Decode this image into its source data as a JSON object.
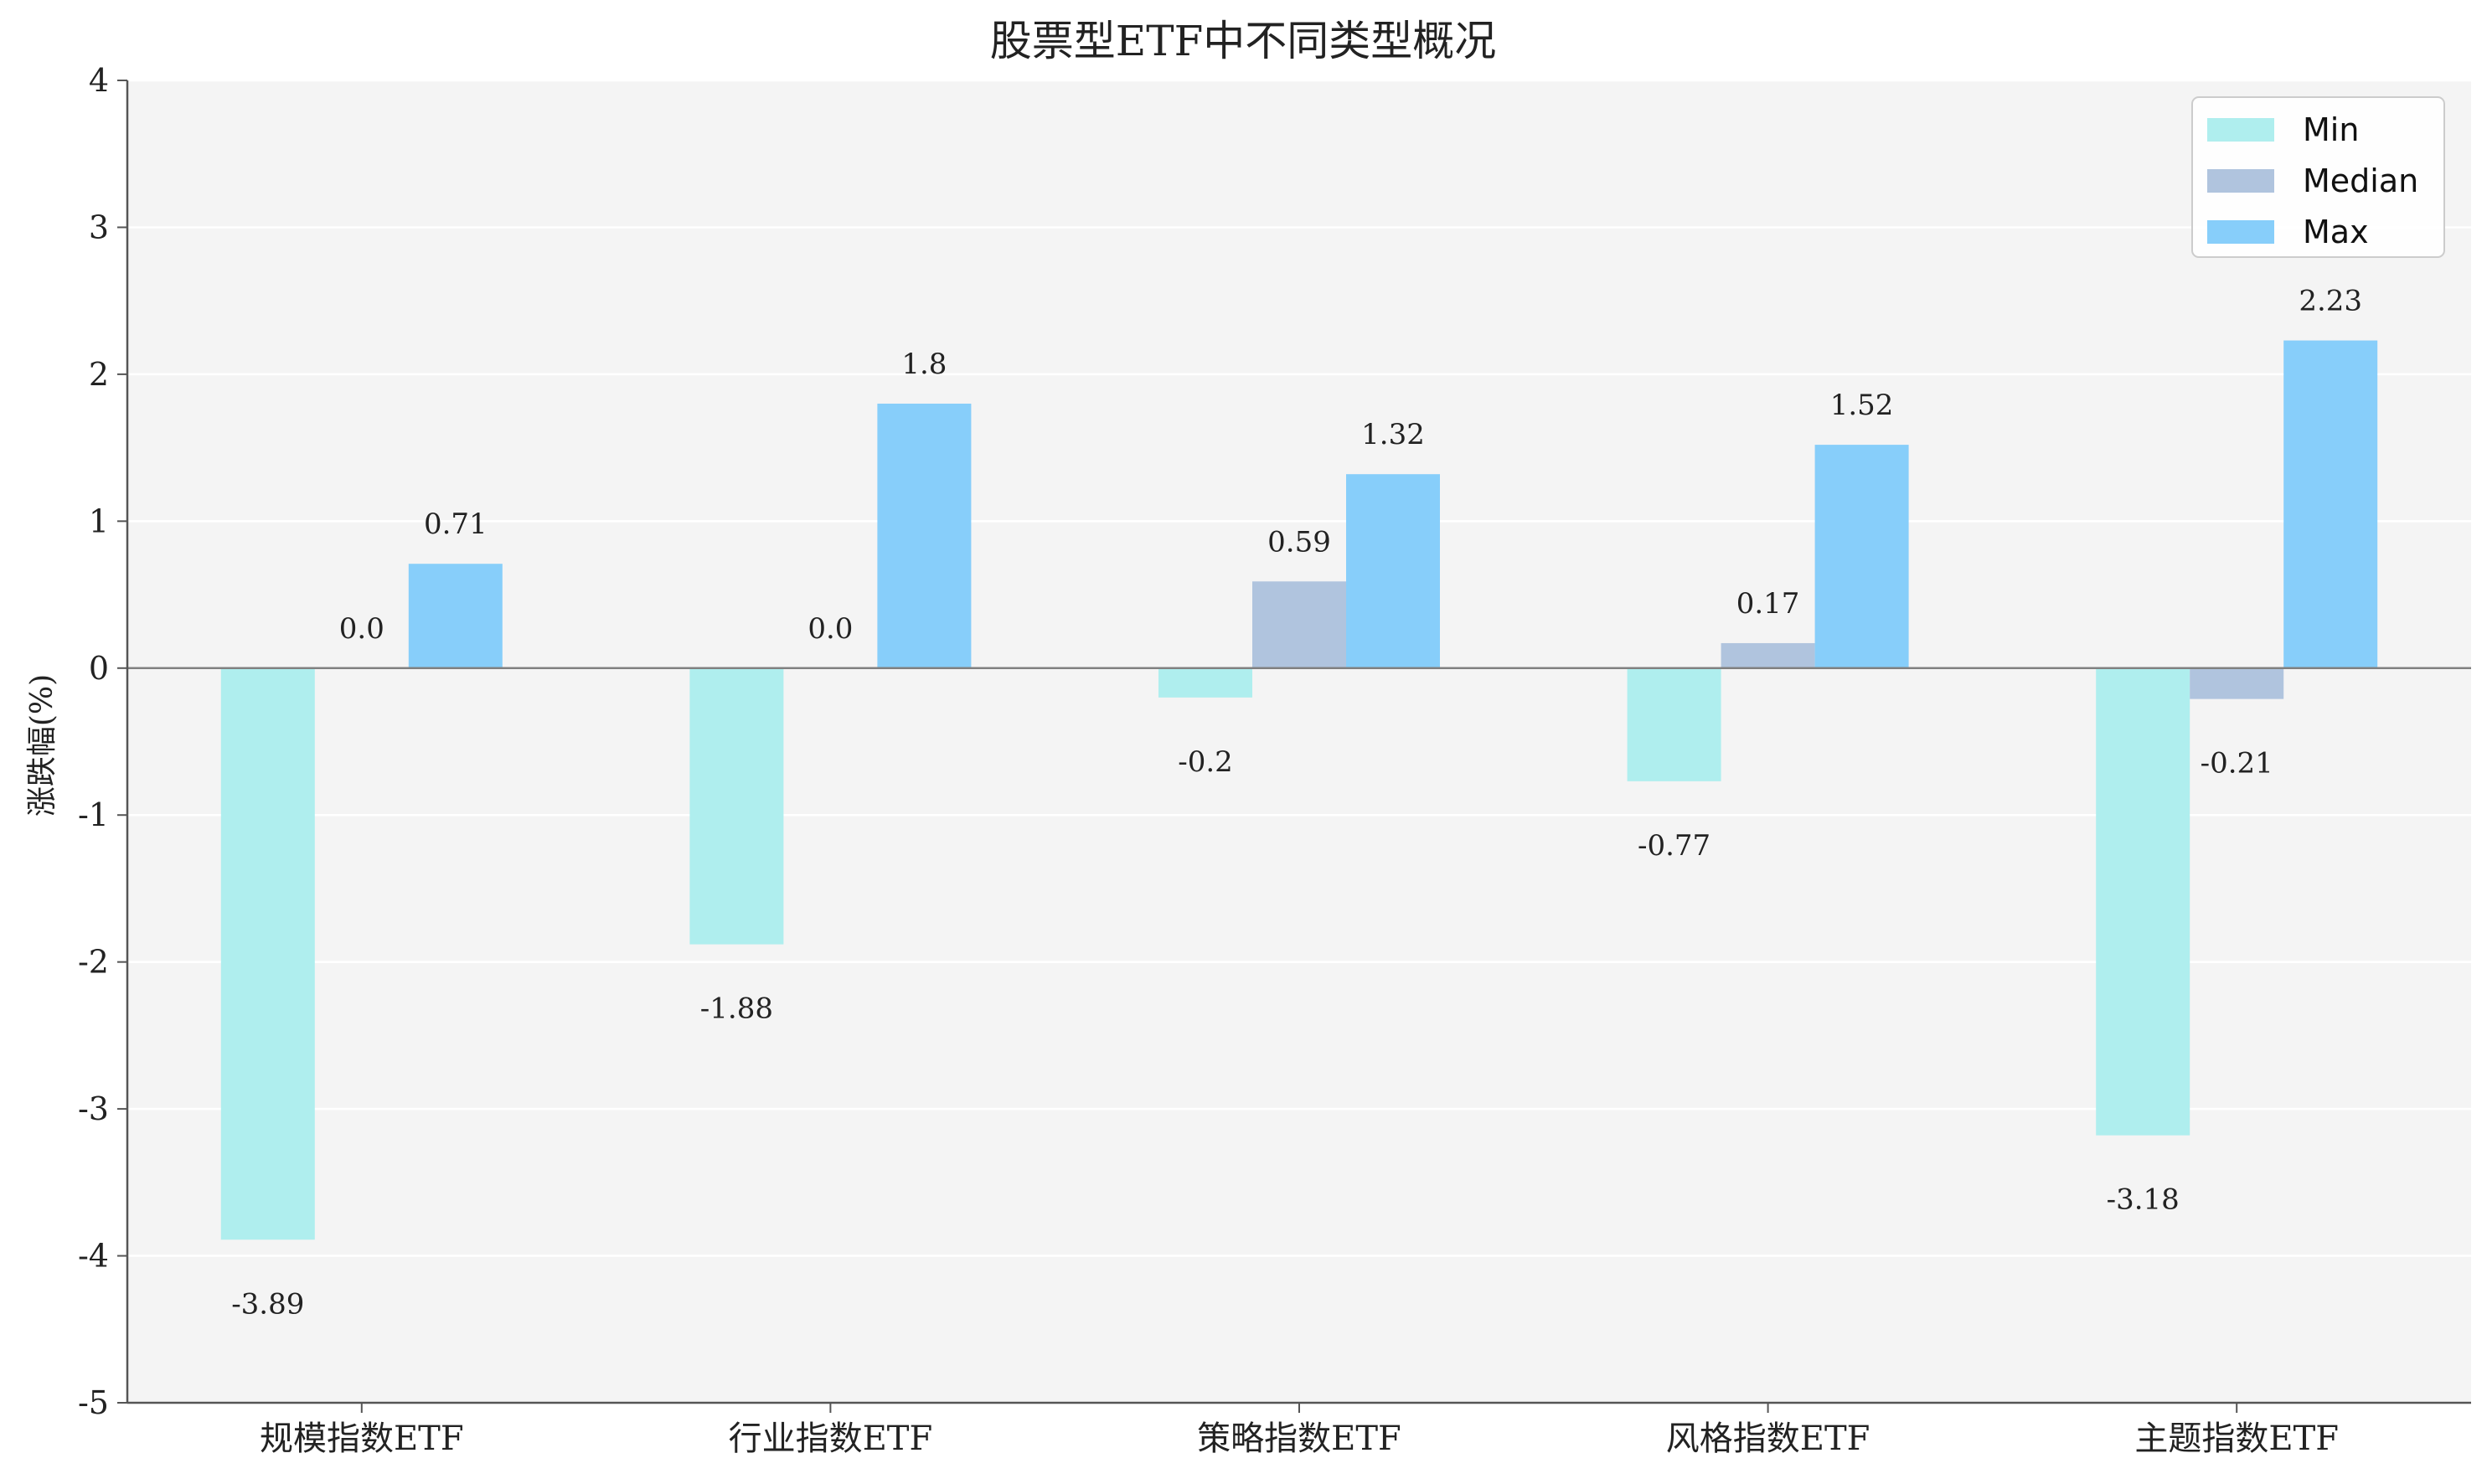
{
  "chart_data": {
    "type": "bar",
    "title": "股票型ETF中不同类型概况",
    "xlabel": "",
    "ylabel": "涨跌幅(%)",
    "ylim": [
      -5,
      4
    ],
    "yticks": [
      "-5",
      "-4",
      "-3",
      "-2",
      "-1",
      "0",
      "1",
      "2",
      "3",
      "4"
    ],
    "categories": [
      "规模指数ETF",
      "行业指数ETF",
      "策略指数ETF",
      "风格指数ETF",
      "主题指数ETF"
    ],
    "series": [
      {
        "name": "Min",
        "color": "#afeeee",
        "values": [
          -3.89,
          -1.88,
          -0.2,
          -0.77,
          -3.18
        ],
        "labels": [
          "-3.89",
          "-1.88",
          "-0.2",
          "-0.77",
          "-3.18"
        ]
      },
      {
        "name": "Median",
        "color": "#b0c4de",
        "values": [
          0.0,
          0.0,
          0.59,
          0.17,
          -0.21
        ],
        "labels": [
          "0.0",
          "0.0",
          "0.59",
          "0.17",
          "-0.21"
        ]
      },
      {
        "name": "Max",
        "color": "#87cefa",
        "values": [
          0.71,
          1.8,
          1.32,
          1.52,
          2.23
        ],
        "labels": [
          "0.71",
          "1.8",
          "1.32",
          "1.52",
          "2.23"
        ]
      }
    ],
    "grid": true,
    "legend": "top-right",
    "background": "#f4f4f4"
  }
}
